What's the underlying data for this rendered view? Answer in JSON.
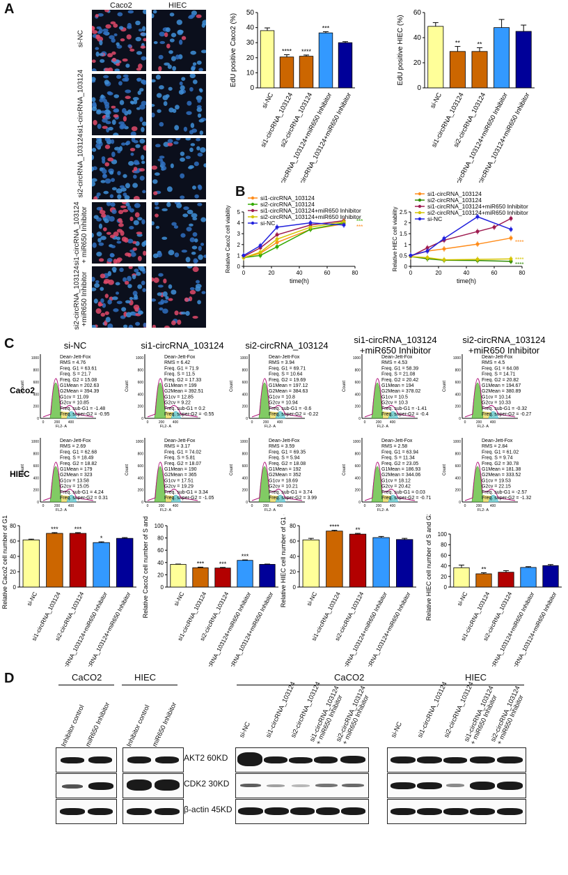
{
  "panels": {
    "a": "A",
    "b": "B",
    "c": "C",
    "d": "D"
  },
  "micrograph": {
    "columns": [
      "Caco2",
      "HIEC"
    ],
    "rows": [
      "si-NC",
      "si1-circRNA_103124",
      "si2-circRNA_103124",
      "si1-circRNA_103124\n+ miR650 Inhibitor",
      "si2-circRNA_103124\n+miR650 Inhibitor"
    ]
  },
  "chart_data": [
    {
      "id": "edu-caco2",
      "type": "bar",
      "ylabel": "EdU positive Caco2 (%)",
      "ylim": [
        0,
        50
      ],
      "yticks": [
        0,
        10,
        20,
        30,
        40,
        50
      ],
      "categories": [
        "si-NC",
        "si1-circRNA_103124",
        "si2-circRNA_103124",
        "si1-circRNA_103124+miR650 Inhibitor",
        "si2-circRNA_103124+miR650 Inhibitor"
      ],
      "values": [
        38,
        20.5,
        21,
        36.5,
        30
      ],
      "errors": [
        1.8,
        1.5,
        0.8,
        0.8,
        0.7
      ],
      "sig": [
        "",
        "****",
        "****",
        "***",
        ""
      ],
      "colors": [
        "#ffff99",
        "#cc6600",
        "#cc6600",
        "#3399ff",
        "#000099"
      ]
    },
    {
      "id": "edu-hiec",
      "type": "bar",
      "ylabel": "EdU positive HIEC (%)",
      "ylim": [
        0,
        60
      ],
      "yticks": [
        0,
        20,
        40,
        60
      ],
      "categories": [
        "si-NC",
        "si1-circRNA_103124",
        "si2-circRNA_103124",
        "si1-circRNA_103124+miR650 Inhibitor",
        "si2-circRNA_103124+miR650 Inhibitor"
      ],
      "values": [
        49,
        29,
        29,
        48,
        45
      ],
      "errors": [
        3,
        4,
        3,
        6.5,
        5
      ],
      "sig": [
        "",
        "**",
        "**",
        "",
        ""
      ],
      "colors": [
        "#ffff99",
        "#cc6600",
        "#cc6600",
        "#3399ff",
        "#000099"
      ]
    },
    {
      "id": "via-caco2",
      "type": "line",
      "ylabel": "Relative Caco2 cell viability",
      "xlabel": "time(h)",
      "xlim": [
        0,
        80
      ],
      "ylim": [
        0,
        5
      ],
      "xticks": [
        0,
        20,
        40,
        60,
        80
      ],
      "yticks": [
        0,
        1,
        2,
        3,
        4,
        5
      ],
      "x": [
        0,
        12,
        24,
        48,
        72
      ],
      "series": [
        {
          "name": "si1-circRNA_103124",
          "color": "#ff8c1a",
          "values": [
            0.8,
            1.2,
            2.2,
            3.4,
            3.9
          ]
        },
        {
          "name": "si2-circRNA_103124",
          "color": "#33aa00",
          "values": [
            0.8,
            1.0,
            1.8,
            3.4,
            4.0
          ]
        },
        {
          "name": "si1-circRNA_103124+miR650 Inhibitor",
          "color": "#9e1b50",
          "values": [
            0.9,
            1.7,
            2.9,
            3.8,
            4.2
          ]
        },
        {
          "name": "si2-circRNA_103124+miR650 Inhibitor",
          "color": "#d4c400",
          "values": [
            0.8,
            1.3,
            2.5,
            3.6,
            4.1
          ]
        },
        {
          "name": "si-NC",
          "color": "#2222dd",
          "values": [
            1.0,
            1.9,
            3.6,
            4.0,
            3.8
          ]
        }
      ],
      "annotations": [
        "***",
        "***"
      ]
    },
    {
      "id": "via-hiec",
      "type": "line",
      "ylabel": "Relative HIEC cell viability",
      "xlabel": "time(h)",
      "xlim": [
        0,
        80
      ],
      "ylim": [
        0,
        2.5
      ],
      "xticks": [
        0,
        20,
        40,
        60,
        80
      ],
      "yticks": [
        0,
        0.5,
        1,
        1.5,
        2,
        2.5
      ],
      "x": [
        0,
        12,
        24,
        48,
        60,
        72
      ],
      "series": [
        {
          "name": "si1-circRNA_103124",
          "color": "#ff8c1a",
          "values": [
            0.48,
            0.7,
            0.8,
            1.02,
            null,
            1.3
          ]
        },
        {
          "name": "si2-circRNA_103124",
          "color": "#2e8b00",
          "values": [
            0.45,
            0.35,
            0.28,
            0.27,
            null,
            0.23
          ]
        },
        {
          "name": "si1-circRNA_103124+miR650 Inhibitor",
          "color": "#9e1b50",
          "values": [
            0.46,
            0.85,
            1.2,
            1.6,
            1.8,
            2.2
          ]
        },
        {
          "name": "si2-circRNA_103124+miR650 Inhibitor",
          "color": "#d4c400",
          "values": [
            0.45,
            0.4,
            0.3,
            0.32,
            null,
            0.34
          ]
        },
        {
          "name": "si-NC",
          "color": "#2222dd",
          "values": [
            0.5,
            0.7,
            1.28,
            2.28,
            null,
            1.7
          ]
        }
      ],
      "annotations": [
        "****",
        "****",
        "****"
      ]
    },
    {
      "id": "g1-caco2",
      "type": "bar",
      "ylabel": "Relative Caco2 cell number of G1 (%)",
      "ylim": [
        0,
        80
      ],
      "yticks": [
        0,
        20,
        40,
        60,
        80
      ],
      "categories": [
        "si-NC",
        "si1-circRNA_103124",
        "si2-circRNA_103124",
        "si1-circRNA_103124+miR650 Inhibitor",
        "si2-circRNA_103124+miR650 Inhibitor"
      ],
      "values": [
        61.5,
        70,
        70,
        58,
        63.5
      ],
      "errors": [
        1,
        1,
        1,
        1,
        1
      ],
      "sig": [
        "",
        "***",
        "***",
        "*",
        ""
      ],
      "colors": [
        "#ffff99",
        "#cc6600",
        "#b30000",
        "#3399ff",
        "#000099"
      ]
    },
    {
      "id": "sg2-caco2",
      "type": "bar",
      "ylabel": "Relative Caco2 cell number of S and G2 (%)",
      "ylim": [
        0,
        100
      ],
      "yticks": [
        0,
        20,
        40,
        60,
        80,
        100
      ],
      "categories": [
        "si-NC",
        "si1-circRNA_103124",
        "si2-circRNA_103124",
        "si1-circRNA_103124+miR650 Inhibitor",
        "si2-circRNA_103124+miR650 Inhibitor"
      ],
      "values": [
        37,
        31.5,
        31,
        43.5,
        37
      ],
      "errors": [
        0.5,
        1,
        1,
        0.7,
        0.5
      ],
      "sig": [
        "",
        "***",
        "***",
        "***",
        ""
      ],
      "colors": [
        "#ffff99",
        "#cc6600",
        "#b30000",
        "#3399ff",
        "#000099"
      ]
    },
    {
      "id": "g1-hiec",
      "type": "bar",
      "ylabel": "Relative HIEC cell number of G1 (%)",
      "ylim": [
        0,
        80
      ],
      "yticks": [
        0,
        20,
        40,
        60,
        80
      ],
      "categories": [
        "si-NC",
        "si1-circRNA_103124",
        "si2-circRNA_103124",
        "si1-circRNA_103124+miR650 Inhibitor",
        "si2-circRNA_103124+miR650 Inhibitor"
      ],
      "values": [
        61.5,
        73,
        69,
        64.5,
        62
      ],
      "errors": [
        2,
        1,
        1,
        1.5,
        1.5
      ],
      "sig": [
        "",
        "****",
        "**",
        "",
        ""
      ],
      "colors": [
        "#ffff99",
        "#cc6600",
        "#b30000",
        "#3399ff",
        "#000099"
      ]
    },
    {
      "id": "sg2-hiec",
      "type": "bar",
      "ylabel": "Relative HIEC cell number of S and G2 (%)",
      "ylim": [
        0,
        100
      ],
      "yticks": [
        0,
        20,
        40,
        60,
        80,
        100
      ],
      "categories": [
        "si-NC",
        "si1-circRNA_103124",
        "si2-circRNA_103124",
        "si1-circRNA_103124+miR650 Inhibitor",
        "si2-circRNA_103124+miR650 Inhibitor"
      ],
      "values": [
        36.5,
        25,
        28,
        37,
        40.5
      ],
      "errors": [
        5,
        2,
        3,
        1.5,
        2
      ],
      "sig": [
        "",
        "**",
        "",
        "",
        ""
      ],
      "colors": [
        "#ffff99",
        "#cc6600",
        "#b30000",
        "#3399ff",
        "#000099"
      ]
    }
  ],
  "flow": {
    "columns": [
      "si-NC",
      "si1-circRNA_103124",
      "si2-circRNA_103124",
      "si1-circRNA_103124\n+miR650 Inhibitor",
      "si2-circRNA_103124\n+miR650 Inhibitor"
    ],
    "rows": [
      "Caco2",
      "HIEC"
    ],
    "ylabel": "Count",
    "xlabel": "FL2- A",
    "xticks": [
      "0",
      "200",
      "400"
    ],
    "yticks": [
      "0",
      "200",
      "400",
      "600",
      "800",
      "1000"
    ],
    "stats": [
      [
        "Dean-Jett-Fox\nRMS = 4.76\nFreq. G1 = 63.61\nFreq. S = 21.7\nFreq. G2 = 15.08\nG1Mean = 202.63\nG2Mean = 394.39\nG1cv = 11.09\nG2cv = 10.85\nFreq. sub-G1 = -1.48\nFreq. super-G2 = -0.95",
        "Dean-Jett-Fox\nRMS = 6.42\nFreq. G1 = 71.9\nFreq. S = 11.5\nFreq. G2 = 17.33\nG1Mean = 199\nG2Mean = 392.51\nG1cv = 12.85\nG2cv = 9.22\nFreq. sub-G1 = 0.2\nFreq. super-G2 = -0.55",
        "Dean-Jett-Fox\nRMS = 3.94\nFreq. G1 = 69.71\nFreq. S = 10.64\nFreq. G2 = 19.69\nG1Mean = 197.12\nG2Mean = 384.63\nG1cv = 10.8\nG2cv = 10.94\nFreq. sub-G1 = -0.6\nFreq. super-G2 = -0.22",
        "Dean-Jett-Fox\nRMS = 4.53\nFreq. G1 = 58.39\nFreq. S = 21.08\nFreq. G2 = 20.42\nG1Mean = 194\nG2Mean = 378.02\nG1cv = 10.5\nG2cv = 10.3\nFreq. sub-G1 = -1.41\nFreq. super-G2 = -0.4",
        "Dean-Jett-Fox\nRMS = 4.5\nFreq. G1 = 64.08\nFreq. S = 14.71\nFreq. G2 = 20.82\nG1Mean = 194.67\nG2Mean = 380.89\nG1cv = 10.14\nG2cv = 10.33\nFreq. sub-G1 = -0.32\nFreq. super-G2 = -0.27"
      ],
      [
        "Dean-Jett-Fox\nRMS = 2.69\nFreq. G1 = 62.68\nFreq. S = 18.49\nFreq. G2 = 18.82\nG1Mean = 179\nG2Mean = 323\nG1cv = 13.58\nG2cv = 15.05\nFreq. sub-G1 = 4.24\nFreq. super-G2 = 0.31",
        "Dean-Jett-Fox\nRMS = 3.17\nFreq. G1 = 74.02\nFreq. S = 5.81\nFreq. G2 = 18.07\nG1Mean = 190\nG2Mean = 365\nG1cv = 17.51\nG2cv = 19.29\nFreq. sub-G1 = 3.34\nFreq. super-G2 = -1.05",
        "Dean-Jett-Fox\nRMS = 3.59\nFreq. G1 = 69.35\nFreq. S = 5.94\nFreq. G2 = 18.08\nG1Mean = 192\nG2Mean = 352\nG1cv = 18.69\nG2cv = 10.21\nFreq. sub-G1 = 3.74\nFreq. super-G2 = 3.99",
        "Dean-Jett-Fox\nRMS = 2.58\nFreq. G1 = 63.94\nFreq. S = 11.34\nFreq. G2 = 23.05\nG1Mean = 186.93\nG2Mean = 344.06\nG1cv = 18.12\nG2cv = 20.42\nFreq. sub-G1 = 0.03\nFreq. super-G2 = -0.71",
        "Dean-Jett-Fox\nRMS = 2.84\nFreq. G1 = 61.02\nFreq. S = 9.74\nFreq. G2 = 30.78\nG1Mean = 181.38\nG2Mean = 333.52\nG1cv = 19.53\nG2cv = 22.15\nFreq. sub-G1 = -2.57\nFreq. super-G2 = -1.32"
      ]
    ]
  },
  "western": {
    "group_labels": [
      "CaCO2",
      "HIEC",
      "CaCO2",
      "HIEC"
    ],
    "lanes_inhib": [
      "Inhibitor control",
      "miR650 Inhibitor"
    ],
    "lanes_si": [
      "si-NC",
      "si1-circRNA_103124",
      "si2-circRNA_103124",
      "si1-circRNA_103124\n+ miR650 Inhibitor",
      "si2-circRNA_103124\n+ miR650 Inhibitor"
    ],
    "proteins": [
      "AKT2 60KD",
      "CDK2 30KD",
      "β-actin 45KD"
    ]
  }
}
